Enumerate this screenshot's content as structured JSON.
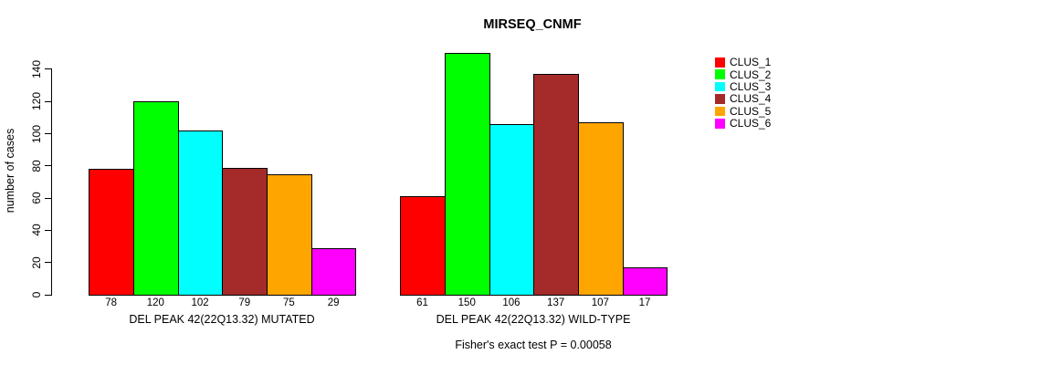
{
  "chart_data": {
    "type": "bar",
    "title": "MIRSEQ_CNMF",
    "ylabel": "number of cases",
    "xlabel": "",
    "ylim": [
      0,
      150
    ],
    "yticks": [
      0,
      20,
      40,
      60,
      80,
      100,
      120,
      140
    ],
    "grid": false,
    "legend_position": "right",
    "legend": [
      {
        "name": "CLUS_1",
        "color": "#FF0000"
      },
      {
        "name": "CLUS_2",
        "color": "#00FF00"
      },
      {
        "name": "CLUS_3",
        "color": "#00FFFF"
      },
      {
        "name": "CLUS_4",
        "color": "#A52A2A"
      },
      {
        "name": "CLUS_5",
        "color": "#FFA500"
      },
      {
        "name": "CLUS_6",
        "color": "#FF00FF"
      }
    ],
    "groups": [
      {
        "xlabel": "DEL PEAK 42(22Q13.32) MUTATED",
        "categories": [
          "CLUS_1",
          "CLUS_2",
          "CLUS_3",
          "CLUS_4",
          "CLUS_5",
          "CLUS_6"
        ],
        "values": [
          78,
          120,
          102,
          79,
          75,
          29
        ]
      },
      {
        "xlabel": "DEL PEAK 42(22Q13.32) WILD-TYPE",
        "categories": [
          "CLUS_1",
          "CLUS_2",
          "CLUS_3",
          "CLUS_4",
          "CLUS_5",
          "CLUS_6"
        ],
        "values": [
          61,
          150,
          106,
          137,
          107,
          17
        ]
      }
    ],
    "annotation": "Fisher's exact test P = 0.00058",
    "colors": {
      "axis": "#000000",
      "bar_border": "#000000",
      "background": "#FFFFFF",
      "text": "#000000"
    }
  }
}
